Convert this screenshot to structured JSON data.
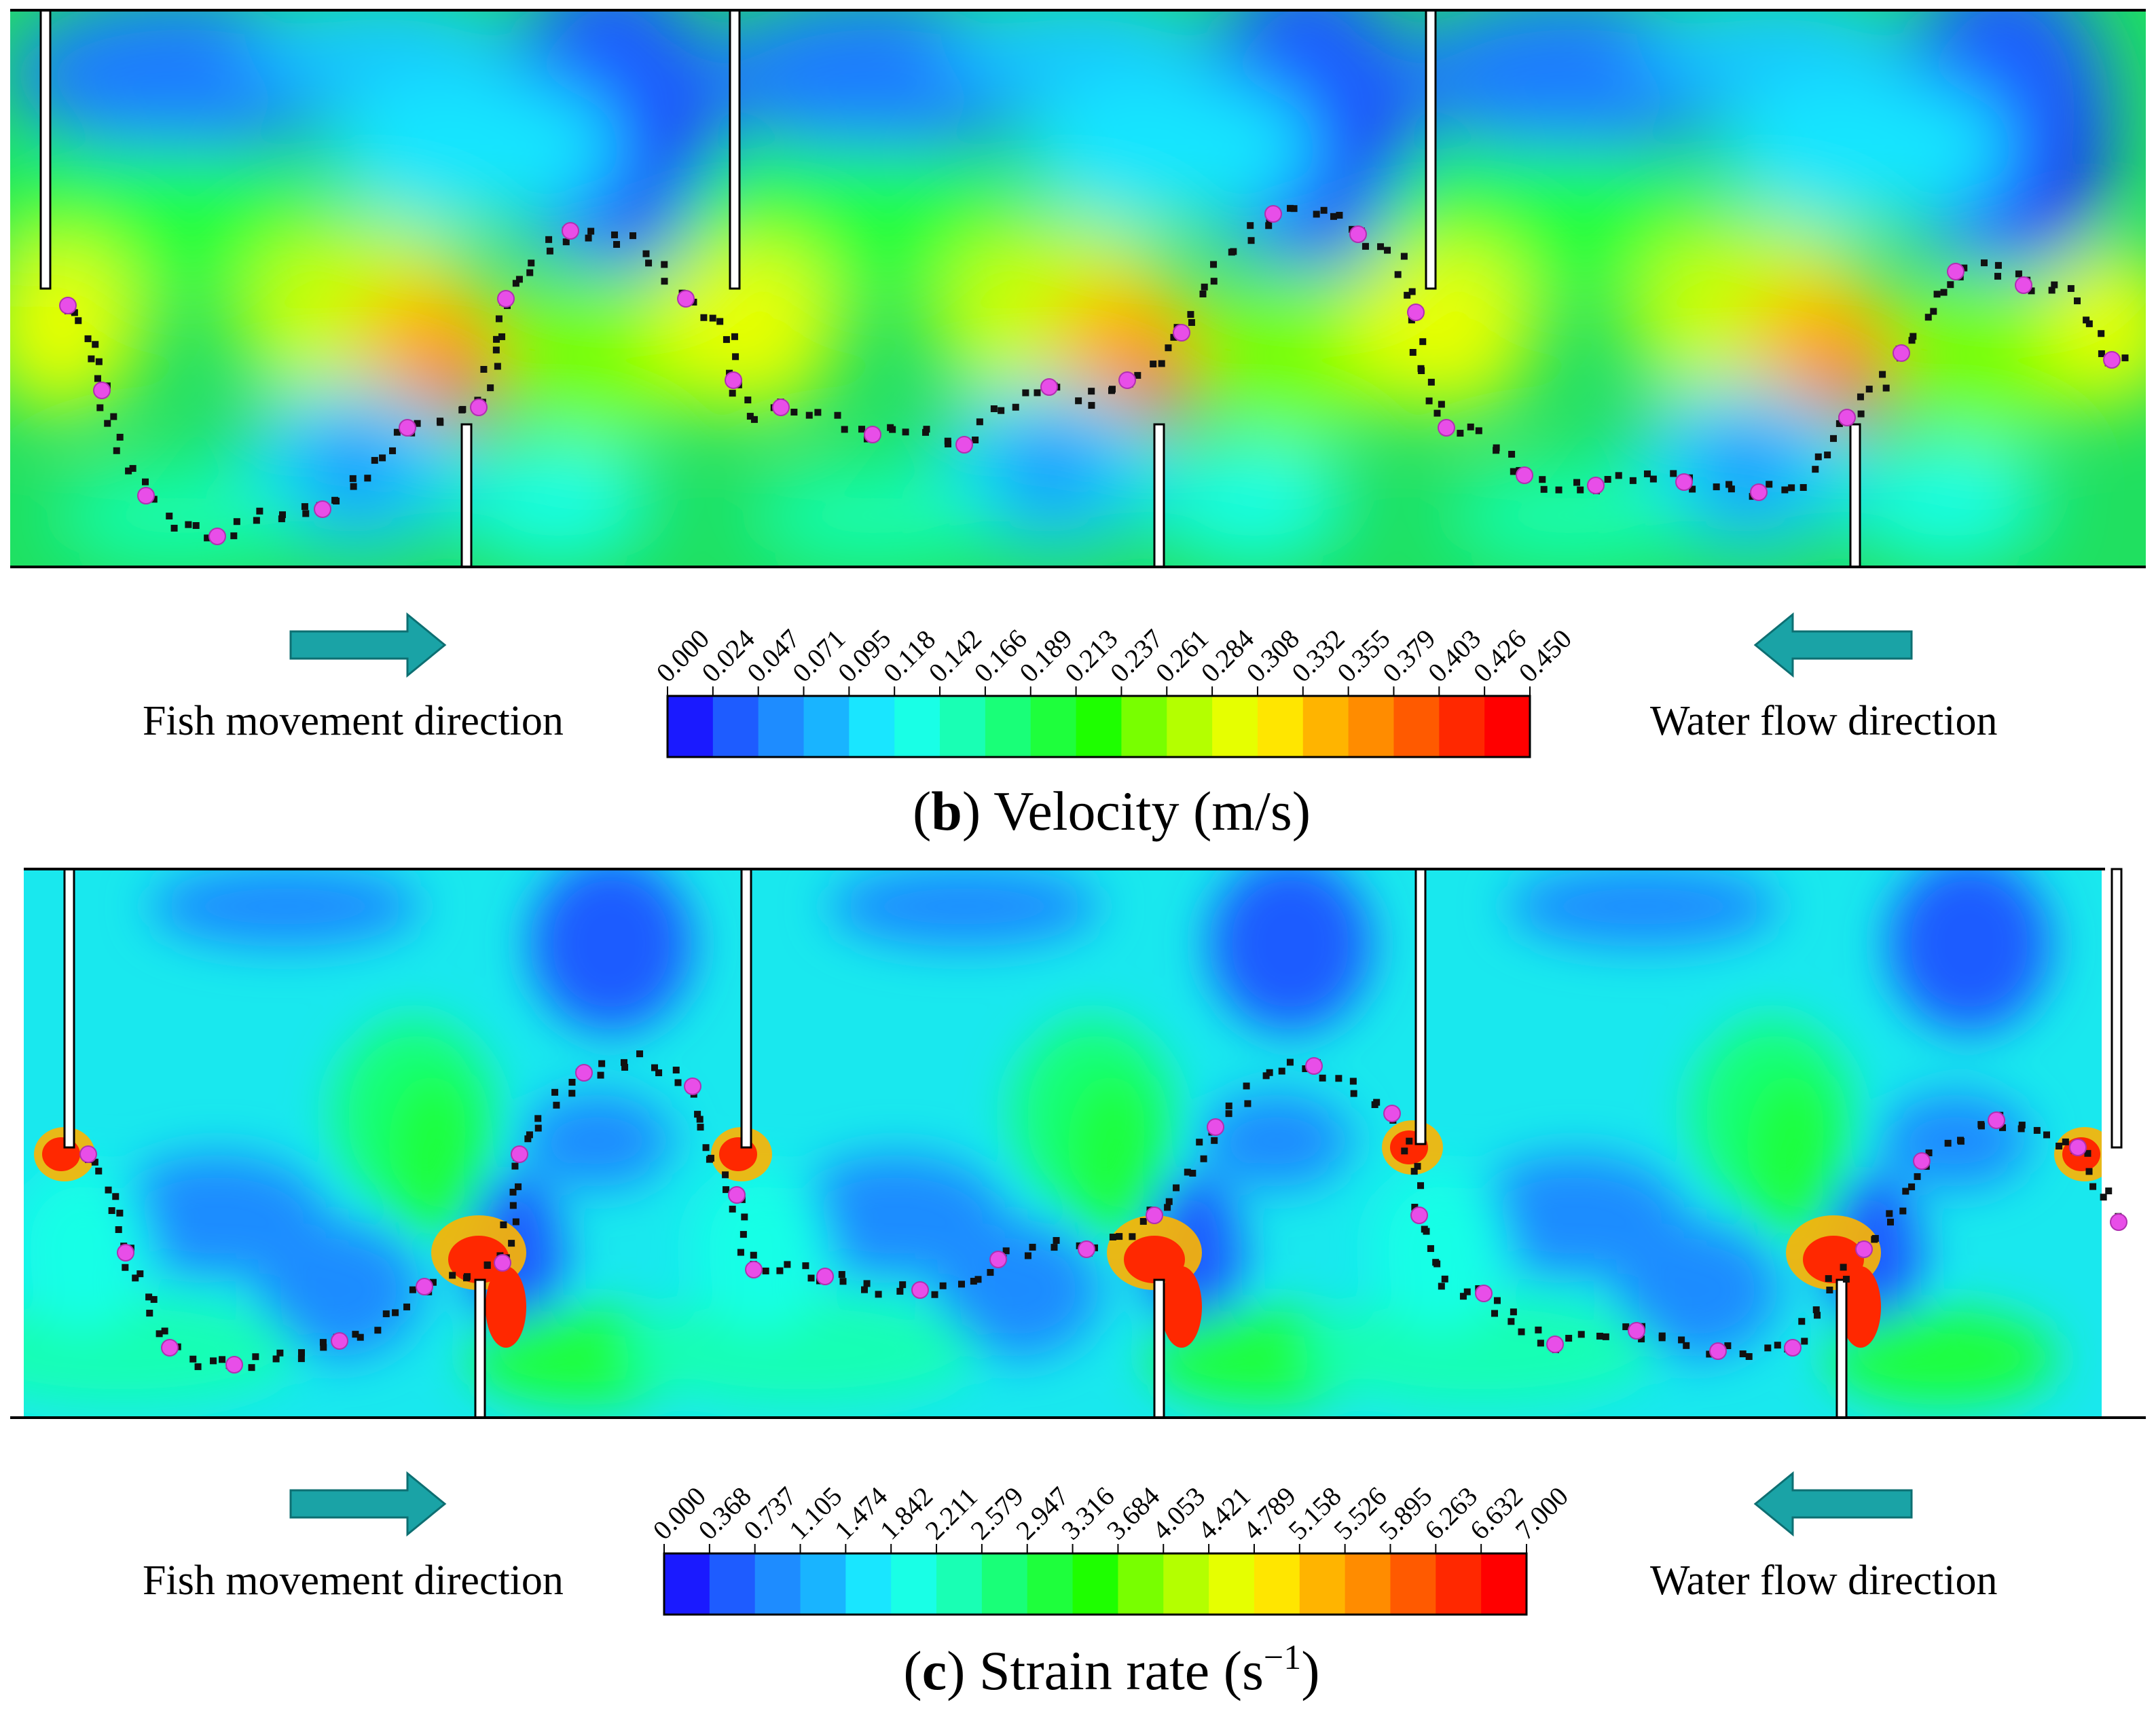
{
  "panels": [
    {
      "id": "b",
      "caption_letter": "b",
      "caption_text": "Velocity (m/s)",
      "left_label": "Fish movement  direction",
      "right_label": "Water flow  direction",
      "ticks": [
        "0.000",
        "0.024",
        "0.047",
        "0.071",
        "0.095",
        "0.118",
        "0.142",
        "0.166",
        "0.189",
        "0.213",
        "0.237",
        "0.261",
        "0.284",
        "0.308",
        "0.332",
        "0.355",
        "0.379",
        "0.403",
        "0.426",
        "0.450"
      ],
      "colors": [
        "#1a1aff",
        "#1e5cff",
        "#1e8cff",
        "#19b4ff",
        "#19e6ff",
        "#19ffe6",
        "#19ffb4",
        "#19ff78",
        "#1eff3c",
        "#1eff00",
        "#78ff00",
        "#b4ff00",
        "#e6ff00",
        "#ffe600",
        "#ffb400",
        "#ff8c00",
        "#ff5a00",
        "#ff2800",
        "#ff0000"
      ]
    },
    {
      "id": "c",
      "caption_letter": "c",
      "caption_text": "Strain rate (s",
      "caption_sup": "−1",
      "caption_end": ")",
      "left_label": "Fish movement  direction",
      "right_label": "Water flow  direction",
      "ticks": [
        "0.000",
        "0.368",
        "0.737",
        "1.105",
        "1.474",
        "1.842",
        "2.211",
        "2.579",
        "2.947",
        "3.316",
        "3.684",
        "4.053",
        "4.421",
        "4.789",
        "5.158",
        "5.526",
        "5.895",
        "6.263",
        "6.632",
        "7.000"
      ],
      "colors": [
        "#1a1aff",
        "#1e5cff",
        "#1e8cff",
        "#19b4ff",
        "#19e6ff",
        "#19ffe6",
        "#19ffb4",
        "#19ff78",
        "#1eff3c",
        "#1eff00",
        "#78ff00",
        "#b4ff00",
        "#e6ff00",
        "#ffe600",
        "#ffb400",
        "#ff8c00",
        "#ff5a00",
        "#ff2800",
        "#ff0000"
      ]
    }
  ],
  "arrow_color": "#1aa3a6",
  "fish_marker_color": "#e84ee8",
  "track_color": "#111111"
}
